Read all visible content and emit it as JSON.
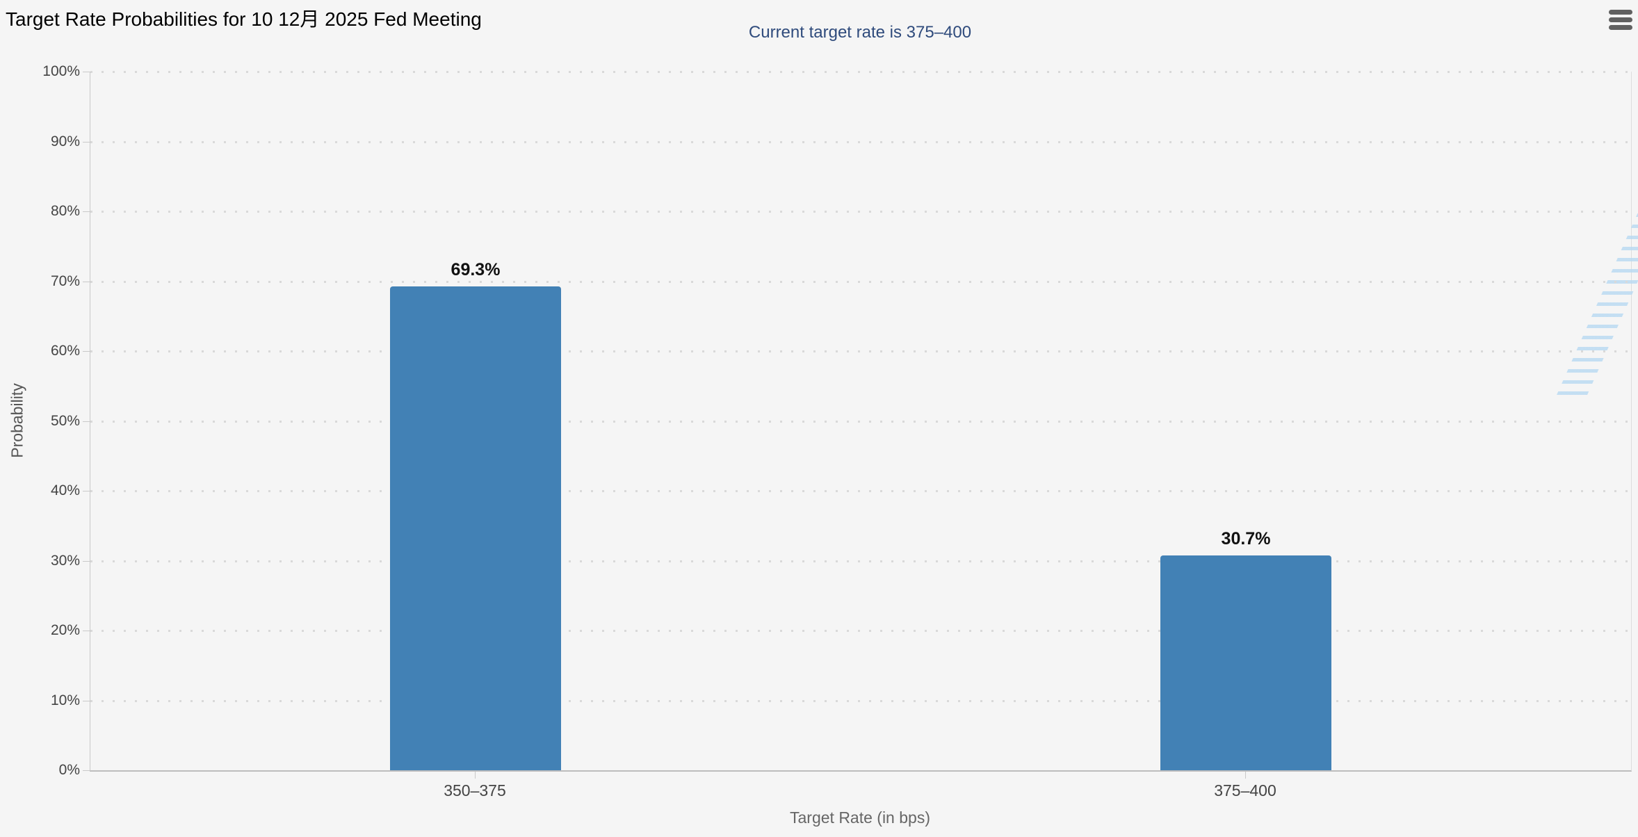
{
  "header": {
    "menu_icon": "hamburger-icon"
  },
  "watermark": {
    "letter": "Q",
    "hatch_color": "#b7d9f2",
    "letter_color": "#c6c6c6"
  },
  "chart_data": {
    "type": "bar",
    "title": "Target Rate Probabilities for 10 12月 2025 Fed Meeting",
    "subtitle": "Current target rate is 375–400",
    "categories": [
      "350–375",
      "375–400"
    ],
    "values": [
      69.3,
      30.7
    ],
    "value_labels": [
      "69.3%",
      "30.7%"
    ],
    "xlabel": "Target Rate (in bps)",
    "ylabel": "Probability",
    "ylim": [
      0,
      100
    ],
    "ytick_step": 10,
    "ytick_suffix": "%",
    "grid": "dotted-horizontal",
    "legend": "none",
    "bar_color": "#4281b5",
    "subtitle_color": "#2f4b7c",
    "axis_label_color": "#444444",
    "axis_title_color": "#666666"
  }
}
